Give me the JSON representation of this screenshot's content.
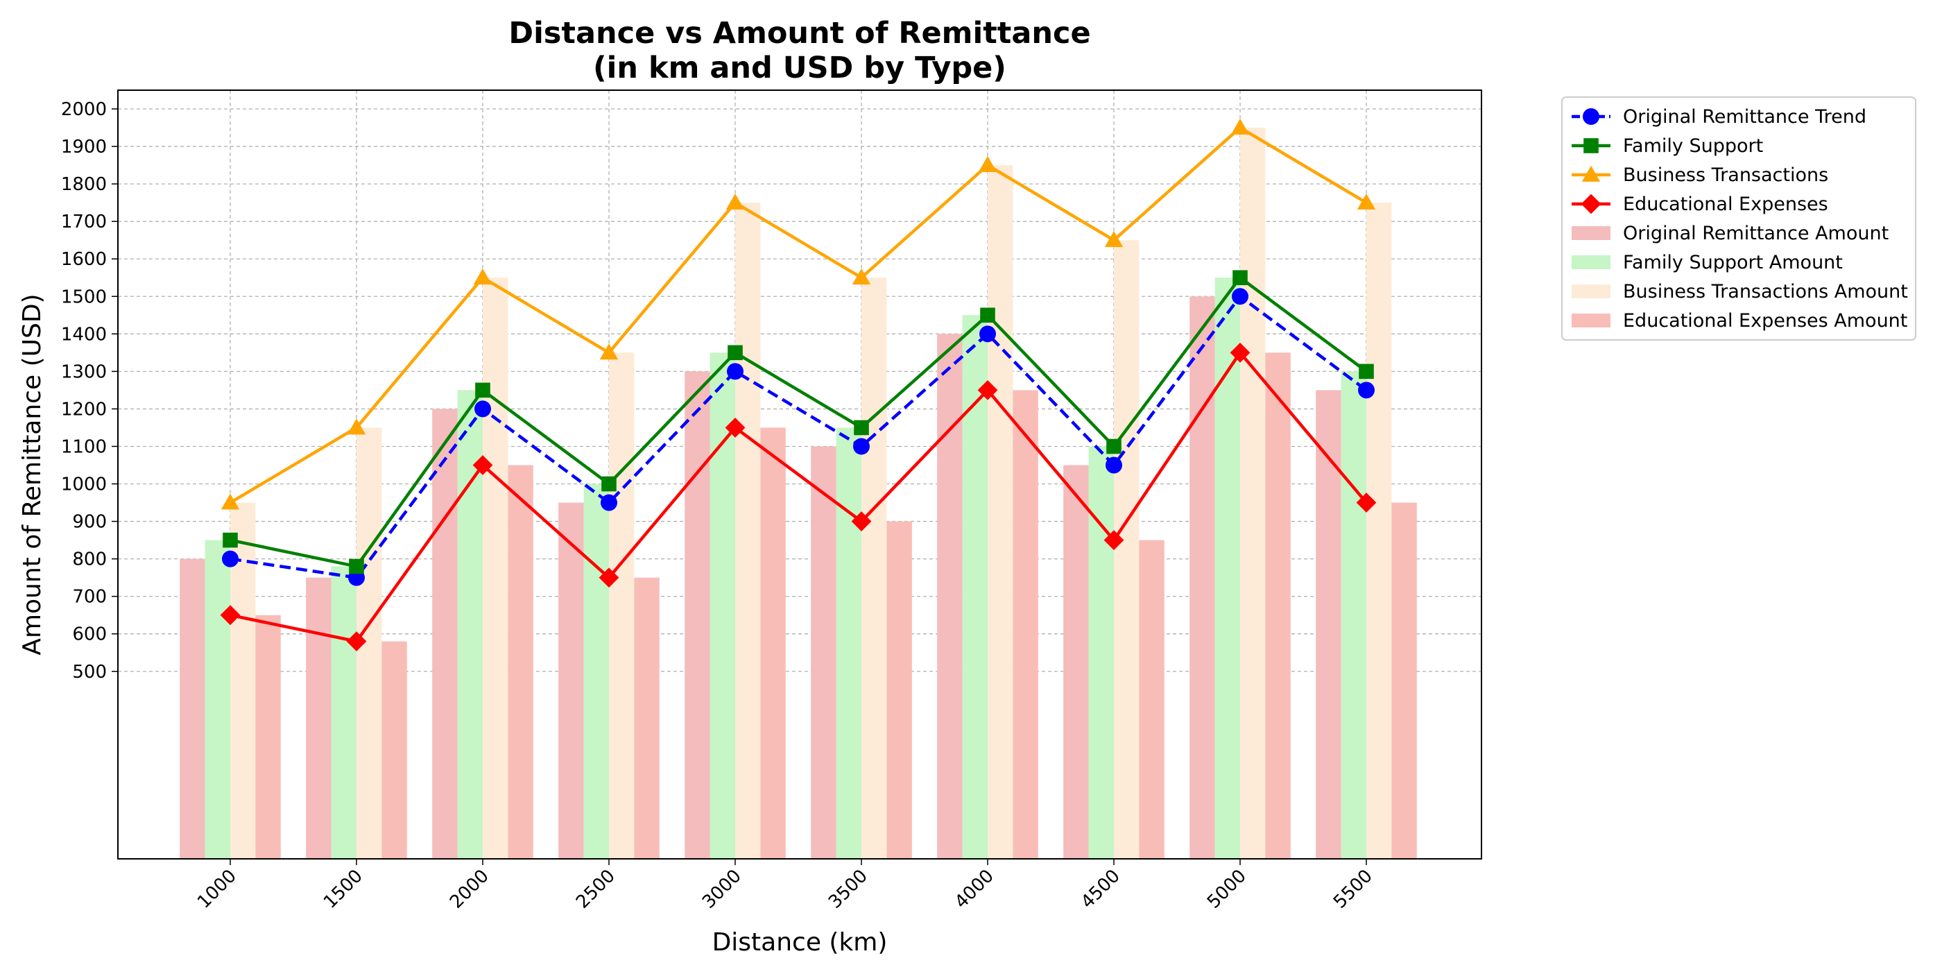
{
  "chart_data": {
    "type": "bar",
    "title_line1": "Distance vs Amount of Remittance",
    "title_line2": "(in km and USD by Type)",
    "xlabel": "Distance (km)",
    "ylabel": "Amount of Remittance (USD)",
    "categories": [
      "1000",
      "1500",
      "2000",
      "2500",
      "3000",
      "3500",
      "4000",
      "4500",
      "5000",
      "5500"
    ],
    "yticks": [
      500,
      600,
      700,
      800,
      900,
      1000,
      1100,
      1200,
      1300,
      1400,
      1500,
      1600,
      1700,
      1800,
      1900,
      2000
    ],
    "ylim": [
      0,
      2050
    ],
    "grid": true,
    "legend_position": "outside upper-right",
    "bar_series": [
      {
        "name": "Original Remittance Amount",
        "color": "#f4bcbc",
        "values": [
          800,
          750,
          1200,
          950,
          1300,
          1100,
          1400,
          1050,
          1500,
          1250
        ]
      },
      {
        "name": "Family Support Amount",
        "color": "#c6f5c6",
        "values": [
          850,
          780,
          1250,
          1000,
          1350,
          1150,
          1450,
          1100,
          1550,
          1300
        ]
      },
      {
        "name": "Business Transactions Amount",
        "color": "#fdebd8",
        "values": [
          950,
          1150,
          1550,
          1350,
          1750,
          1550,
          1850,
          1650,
          1950,
          1750
        ]
      },
      {
        "name": "Educational Expenses Amount",
        "color": "#f9bdb8",
        "values": [
          650,
          580,
          1050,
          750,
          1150,
          900,
          1250,
          850,
          1350,
          950
        ]
      }
    ],
    "line_series": [
      {
        "name": "Original Remittance Trend",
        "color": "#0000ff",
        "marker": "circle",
        "dash": true,
        "values": [
          800,
          750,
          1200,
          950,
          1300,
          1100,
          1400,
          1050,
          1500,
          1250
        ]
      },
      {
        "name": "Family Support",
        "color": "#008000",
        "marker": "square",
        "dash": false,
        "values": [
          850,
          780,
          1250,
          1000,
          1350,
          1150,
          1450,
          1100,
          1550,
          1300
        ]
      },
      {
        "name": "Business Transactions",
        "color": "#ffa500",
        "marker": "triangle",
        "dash": false,
        "values": [
          950,
          1150,
          1550,
          1350,
          1750,
          1550,
          1850,
          1650,
          1950,
          1750
        ]
      },
      {
        "name": "Educational Expenses",
        "color": "#ff0000",
        "marker": "diamond",
        "dash": false,
        "values": [
          650,
          580,
          1050,
          750,
          1150,
          900,
          1250,
          850,
          1350,
          950
        ]
      }
    ]
  }
}
